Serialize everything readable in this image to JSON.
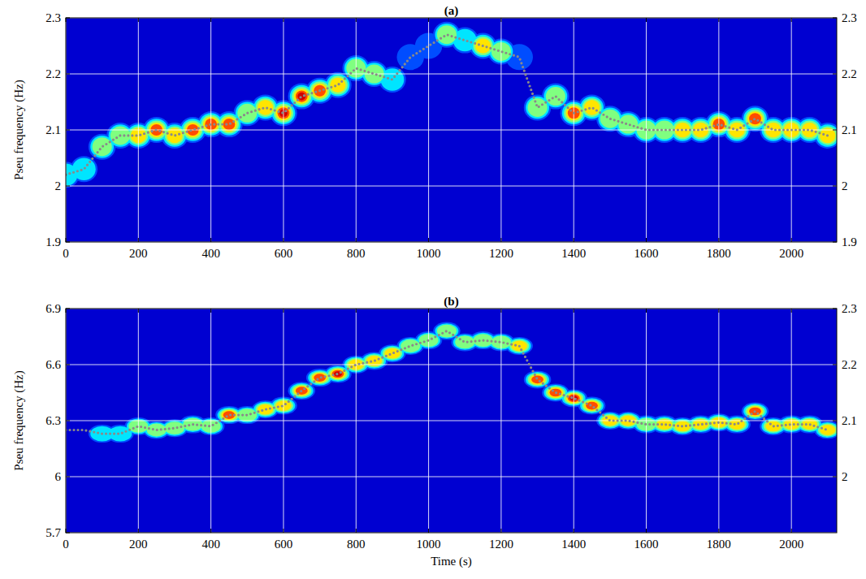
{
  "chart_data": [
    {
      "type": "heatmap",
      "title": "(a)",
      "y_label": "Pseu frequency (Hz)",
      "x": [
        0,
        50,
        100,
        150,
        200,
        250,
        300,
        350,
        400,
        450,
        500,
        550,
        600,
        650,
        700,
        750,
        800,
        850,
        900,
        950,
        1000,
        1050,
        1100,
        1150,
        1200,
        1250,
        1300,
        1350,
        1400,
        1450,
        1500,
        1550,
        1600,
        1650,
        1700,
        1750,
        1800,
        1850,
        1900,
        1950,
        2000,
        2050,
        2100
      ],
      "xlim": [
        0,
        2125
      ],
      "xticks": [
        0,
        200,
        400,
        600,
        800,
        1000,
        1200,
        1400,
        1600,
        1800,
        2000
      ],
      "ylim": [
        1.9,
        2.3
      ],
      "yticks": [
        1.9,
        2,
        2.1,
        2.2,
        2.3
      ],
      "y2lim": [
        1.9,
        2.3
      ],
      "y2ticks": [
        1.9,
        2,
        2.1,
        2.2,
        2.3
      ],
      "grid": true,
      "series": [
        {
          "color": "#8a8a8a",
          "marker": "dot",
          "values": [
            2.02,
            2.03,
            2.07,
            2.09,
            2.09,
            2.1,
            2.09,
            2.1,
            2.11,
            2.11,
            2.13,
            2.14,
            2.13,
            2.16,
            2.17,
            2.18,
            2.21,
            2.2,
            2.19,
            2.23,
            2.25,
            2.27,
            2.26,
            2.25,
            2.24,
            2.23,
            2.14,
            2.16,
            2.13,
            2.14,
            2.12,
            2.11,
            2.1,
            2.1,
            2.1,
            2.1,
            2.11,
            2.1,
            2.12,
            2.1,
            2.1,
            2.1,
            2.09
          ],
          "intensity": [
            0.35,
            0.4,
            0.5,
            0.55,
            0.75,
            0.8,
            0.7,
            0.8,
            0.85,
            0.9,
            0.6,
            0.75,
            0.95,
            0.95,
            0.85,
            0.7,
            0.6,
            0.55,
            0.45,
            0.3,
            0.25,
            0.5,
            0.45,
            0.75,
            0.6,
            0.3,
            0.55,
            0.6,
            0.85,
            0.7,
            0.6,
            0.55,
            0.5,
            0.55,
            0.65,
            0.75,
            0.85,
            0.75,
            0.8,
            0.65,
            0.7,
            0.75,
            0.7
          ]
        }
      ]
    },
    {
      "type": "heatmap",
      "title": "(b)",
      "y_label": "Pseu frequency (Hz)",
      "x_label": "Time (s)",
      "x": [
        0,
        50,
        100,
        150,
        200,
        250,
        300,
        350,
        400,
        450,
        500,
        550,
        600,
        650,
        700,
        750,
        800,
        850,
        900,
        950,
        1000,
        1050,
        1100,
        1150,
        1200,
        1250,
        1300,
        1350,
        1400,
        1450,
        1500,
        1550,
        1600,
        1650,
        1700,
        1750,
        1800,
        1850,
        1900,
        1950,
        2000,
        2050,
        2100
      ],
      "xlim": [
        0,
        2125
      ],
      "xticks": [
        0,
        200,
        400,
        600,
        800,
        1000,
        1200,
        1400,
        1600,
        1800,
        2000
      ],
      "ylim": [
        5.7,
        6.9
      ],
      "yticks": [
        5.7,
        6,
        6.3,
        6.6,
        6.9
      ],
      "y2lim": [
        1.9,
        2.3
      ],
      "y2ticks": [
        2,
        2.1,
        2.2,
        2.3
      ],
      "grid": true,
      "series": [
        {
          "color": "#8a8a8a",
          "marker": "dot",
          "values": [
            6.25,
            6.25,
            6.23,
            6.23,
            6.27,
            6.25,
            6.26,
            6.28,
            6.27,
            6.33,
            6.33,
            6.36,
            6.38,
            6.46,
            6.53,
            6.55,
            6.6,
            6.62,
            6.66,
            6.7,
            6.73,
            6.78,
            6.72,
            6.73,
            6.72,
            6.7,
            6.52,
            6.45,
            6.42,
            6.38,
            6.3,
            6.3,
            6.28,
            6.28,
            6.27,
            6.28,
            6.29,
            6.28,
            6.35,
            6.27,
            6.28,
            6.28,
            6.25
          ],
          "intensity": [
            0.15,
            0.15,
            0.45,
            0.45,
            0.55,
            0.5,
            0.5,
            0.55,
            0.6,
            0.8,
            0.6,
            0.65,
            0.75,
            0.85,
            0.85,
            0.95,
            0.7,
            0.65,
            0.7,
            0.6,
            0.6,
            0.55,
            0.6,
            0.6,
            0.6,
            0.65,
            0.85,
            0.9,
            0.95,
            0.85,
            0.7,
            0.65,
            0.6,
            0.65,
            0.65,
            0.7,
            0.7,
            0.65,
            0.8,
            0.75,
            0.7,
            0.65,
            0.65
          ]
        }
      ]
    }
  ]
}
